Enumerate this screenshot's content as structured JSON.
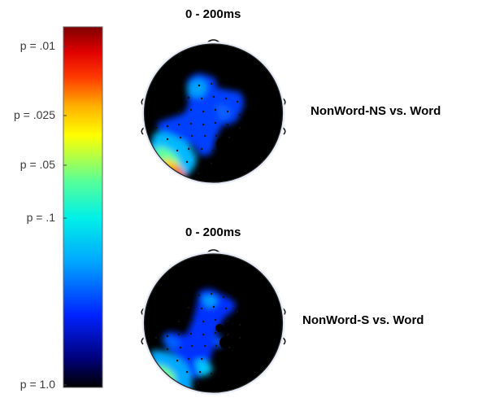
{
  "colorbar": {
    "ticks": [
      {
        "label": "p = .01",
        "p": 0.01
      },
      {
        "label": "p = .025",
        "p": 0.025
      },
      {
        "label": "p = .05",
        "p": 0.05
      },
      {
        "label": "p = .1",
        "p": 0.1
      },
      {
        "label": "p = 1.0",
        "p": 1.0
      }
    ]
  },
  "maps": [
    {
      "title": "0 - 200ms",
      "label": "NonWord-NS vs. Word"
    },
    {
      "title": "0 - 200ms",
      "label": "NonWord-S vs. Word"
    }
  ],
  "colors": {
    "background": "#000000",
    "scale_low": "#000080",
    "scale_high": "#800000"
  }
}
